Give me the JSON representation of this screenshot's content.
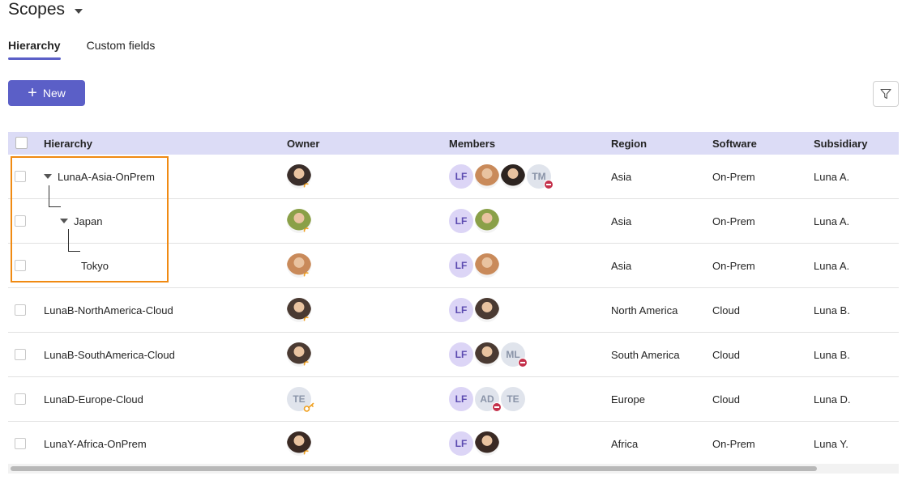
{
  "page": {
    "title": "Scopes"
  },
  "tabs": [
    {
      "label": "Hierarchy",
      "active": true
    },
    {
      "label": "Custom fields",
      "active": false
    }
  ],
  "toolbar": {
    "new_label": "New",
    "new_icon": "plus-icon",
    "filter_icon": "filter-icon"
  },
  "colors": {
    "accent": "#5b5fc7",
    "header_bg": "#dcdcf6",
    "highlight": "#f08a12",
    "remove_badge": "#c4314b"
  },
  "table": {
    "columns": [
      "Hierarchy",
      "Owner",
      "Members",
      "Region",
      "Software",
      "Subsidiary"
    ],
    "rows": [
      {
        "name": "LunaA-Asia-OnPrem",
        "level": 0,
        "expandable": true,
        "owner": {
          "type": "photo",
          "tone": "#3a2e2a",
          "admin": true
        },
        "members": [
          {
            "type": "initials",
            "text": "LF"
          },
          {
            "type": "photo",
            "tone": "#c98a5a"
          },
          {
            "type": "photo",
            "tone": "#2d2420"
          },
          {
            "type": "grey",
            "text": "TM",
            "removed": true
          }
        ],
        "region": "Asia",
        "software": "On-Prem",
        "subsidiary": "Luna A."
      },
      {
        "name": "Japan",
        "level": 1,
        "expandable": true,
        "owner": {
          "type": "photo",
          "tone": "#8aa048",
          "admin": true
        },
        "members": [
          {
            "type": "initials",
            "text": "LF"
          },
          {
            "type": "photo",
            "tone": "#8aa048"
          }
        ],
        "region": "Asia",
        "software": "On-Prem",
        "subsidiary": "Luna A."
      },
      {
        "name": "Tokyo",
        "level": 2,
        "expandable": false,
        "owner": {
          "type": "photo",
          "tone": "#c98a5a",
          "admin": true
        },
        "members": [
          {
            "type": "initials",
            "text": "LF"
          },
          {
            "type": "photo",
            "tone": "#c98a5a"
          }
        ],
        "region": "Asia",
        "software": "On-Prem",
        "subsidiary": "Luna A."
      },
      {
        "name": "LunaB-NorthAmerica-Cloud",
        "level": 0,
        "expandable": false,
        "owner": {
          "type": "photo",
          "tone": "#4a3a32",
          "admin": true
        },
        "members": [
          {
            "type": "initials",
            "text": "LF"
          },
          {
            "type": "photo",
            "tone": "#4a3a32"
          }
        ],
        "region": "North America",
        "software": "Cloud",
        "subsidiary": "Luna B."
      },
      {
        "name": "LunaB-SouthAmerica-Cloud",
        "level": 0,
        "expandable": false,
        "owner": {
          "type": "photo",
          "tone": "#4a3a32",
          "admin": true
        },
        "members": [
          {
            "type": "initials",
            "text": "LF"
          },
          {
            "type": "photo",
            "tone": "#4a3a32"
          },
          {
            "type": "grey",
            "text": "ML",
            "removed": true
          }
        ],
        "region": "South America",
        "software": "Cloud",
        "subsidiary": "Luna B."
      },
      {
        "name": "LunaD-Europe-Cloud",
        "level": 0,
        "expandable": false,
        "owner": {
          "type": "grey",
          "text": "TE",
          "admin": true
        },
        "members": [
          {
            "type": "initials",
            "text": "LF"
          },
          {
            "type": "grey",
            "text": "AD",
            "removed": true
          },
          {
            "type": "grey",
            "text": "TE"
          }
        ],
        "region": "Europe",
        "software": "Cloud",
        "subsidiary": "Luna D."
      },
      {
        "name": "LunaY-Africa-OnPrem",
        "level": 0,
        "expandable": false,
        "owner": {
          "type": "photo",
          "tone": "#3a2a24",
          "admin": true
        },
        "members": [
          {
            "type": "initials",
            "text": "LF"
          },
          {
            "type": "photo",
            "tone": "#3a2a24"
          }
        ],
        "region": "Africa",
        "software": "On-Prem",
        "subsidiary": "Luna Y."
      }
    ]
  }
}
